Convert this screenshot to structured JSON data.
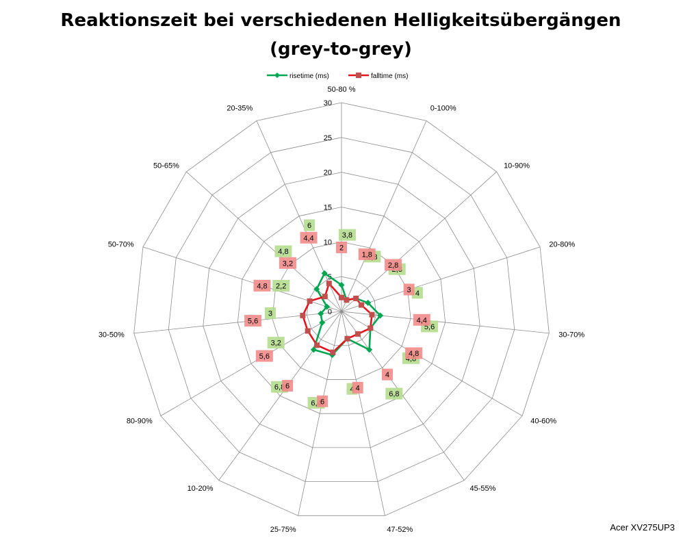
{
  "chart_data": {
    "type": "radar",
    "title_line1": "Reaktionszeit bei verschiedenen Helligkeitsübergängen",
    "title_line2": "(grey-to-grey)",
    "categories": [
      "50-80 %",
      "0-100%",
      "10-90%",
      "20-80%",
      "30-70%",
      "40-60%",
      "45-55%",
      "47-52%",
      "25-75%",
      "10-20%",
      "80-90%",
      "30-50%",
      "50-70%",
      "50-65%",
      "20-35%"
    ],
    "rlim": [
      0,
      30
    ],
    "ticks": [
      "0",
      "5",
      "10",
      "15",
      "20",
      "25",
      "30"
    ],
    "legend_position": "top",
    "series": [
      {
        "name": "risetime (ms)",
        "color": "#00a651",
        "marker": "diamond",
        "label_bg": "#b5dc8f",
        "values": [
          3.8,
          1.8,
          2.8,
          4,
          5.6,
          4.8,
          6.8,
          4,
          6.4,
          6.8,
          3.2,
          3,
          2.2,
          4.8,
          6
        ],
        "labels": [
          "3,8",
          "1,8",
          "2,8",
          "4",
          "5,6",
          "4,8",
          "6,8",
          "4",
          "6,4",
          "6,8",
          "3,2",
          "3",
          "2,2",
          "4,8",
          "6"
        ]
      },
      {
        "name": "falltime (ms)",
        "color": "#e3141b",
        "marker": "square",
        "label_bg": "#f28b8b",
        "values": [
          2,
          1.8,
          2.8,
          3,
          4.4,
          4.8,
          4,
          4,
          6,
          6,
          5.6,
          5.6,
          4.8,
          3.2,
          4.4
        ],
        "labels": [
          "2",
          "1,8",
          "2,8",
          "3",
          "4,4",
          "4,8",
          "4",
          "4",
          "6",
          "6",
          "5,6",
          "5,6",
          "4,8",
          "3,2",
          "4,4"
        ]
      }
    ]
  },
  "watermark": "Acer XV275UP3"
}
